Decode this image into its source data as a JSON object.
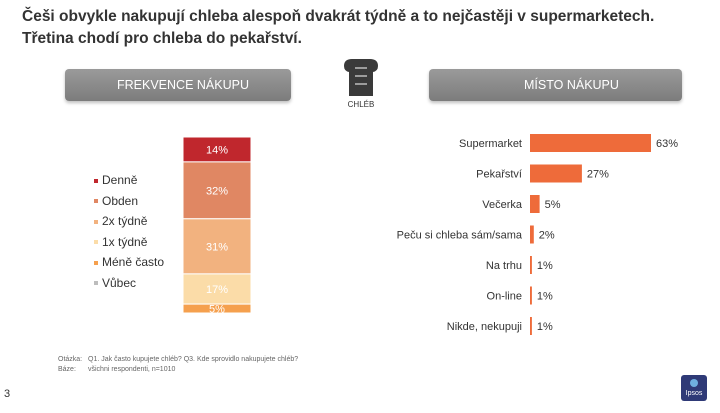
{
  "title": {
    "line1": "Češi obvykle nakupují chleba alespoň dvakrát týdně a to nejčastěji v supermarketech.",
    "line2": "Třetina chodí pro chleba do pekařství."
  },
  "headers": {
    "left": "FREKVENCE NÁKUPU",
    "right": "MÍSTO NÁKUPU",
    "icon_label": "CHLÉB"
  },
  "chart_data": [
    {
      "type": "bar",
      "orientation": "stacked-vertical",
      "title": "FREKVENCE NÁKUPU",
      "categories": [
        "Denně",
        "Obden",
        "2x týdně",
        "1x týdně",
        "Méně často",
        "Vůbec"
      ],
      "values": [
        14,
        32,
        31,
        17,
        5,
        0
      ],
      "value_labels": [
        "14%",
        "32%",
        "31%",
        "17%",
        "5%",
        ""
      ],
      "colors": [
        "#C0272D",
        "#E08763",
        "#F2B27F",
        "#FBDCA8",
        "#F5A04E",
        "#BDBDBD"
      ],
      "legend": "left"
    },
    {
      "type": "bar",
      "orientation": "horizontal",
      "title": "MÍSTO NÁKUPU",
      "categories": [
        "Supermarket",
        "Pekařství",
        "Večerka",
        "Peču si chleba sám/sama",
        "Na trhu",
        "On-line",
        "Nikde, nekupuji"
      ],
      "values": [
        63,
        27,
        5,
        2,
        1,
        1,
        1
      ],
      "value_labels": [
        "63%",
        "27%",
        "5%",
        "2%",
        "1%",
        "1%",
        "1%"
      ],
      "color": "#EE6B3A",
      "xlim": [
        0,
        63
      ]
    }
  ],
  "footnote": {
    "q_label": "Otázka:",
    "q_text": "Q1. Jak často kupujete chléb? Q3. Kde sprovidlo nakupujete chléb?",
    "b_label": "Báze:",
    "b_text": "všichni respondenti, n=1010"
  },
  "page_number": "3",
  "logo_text": "Ipsos"
}
